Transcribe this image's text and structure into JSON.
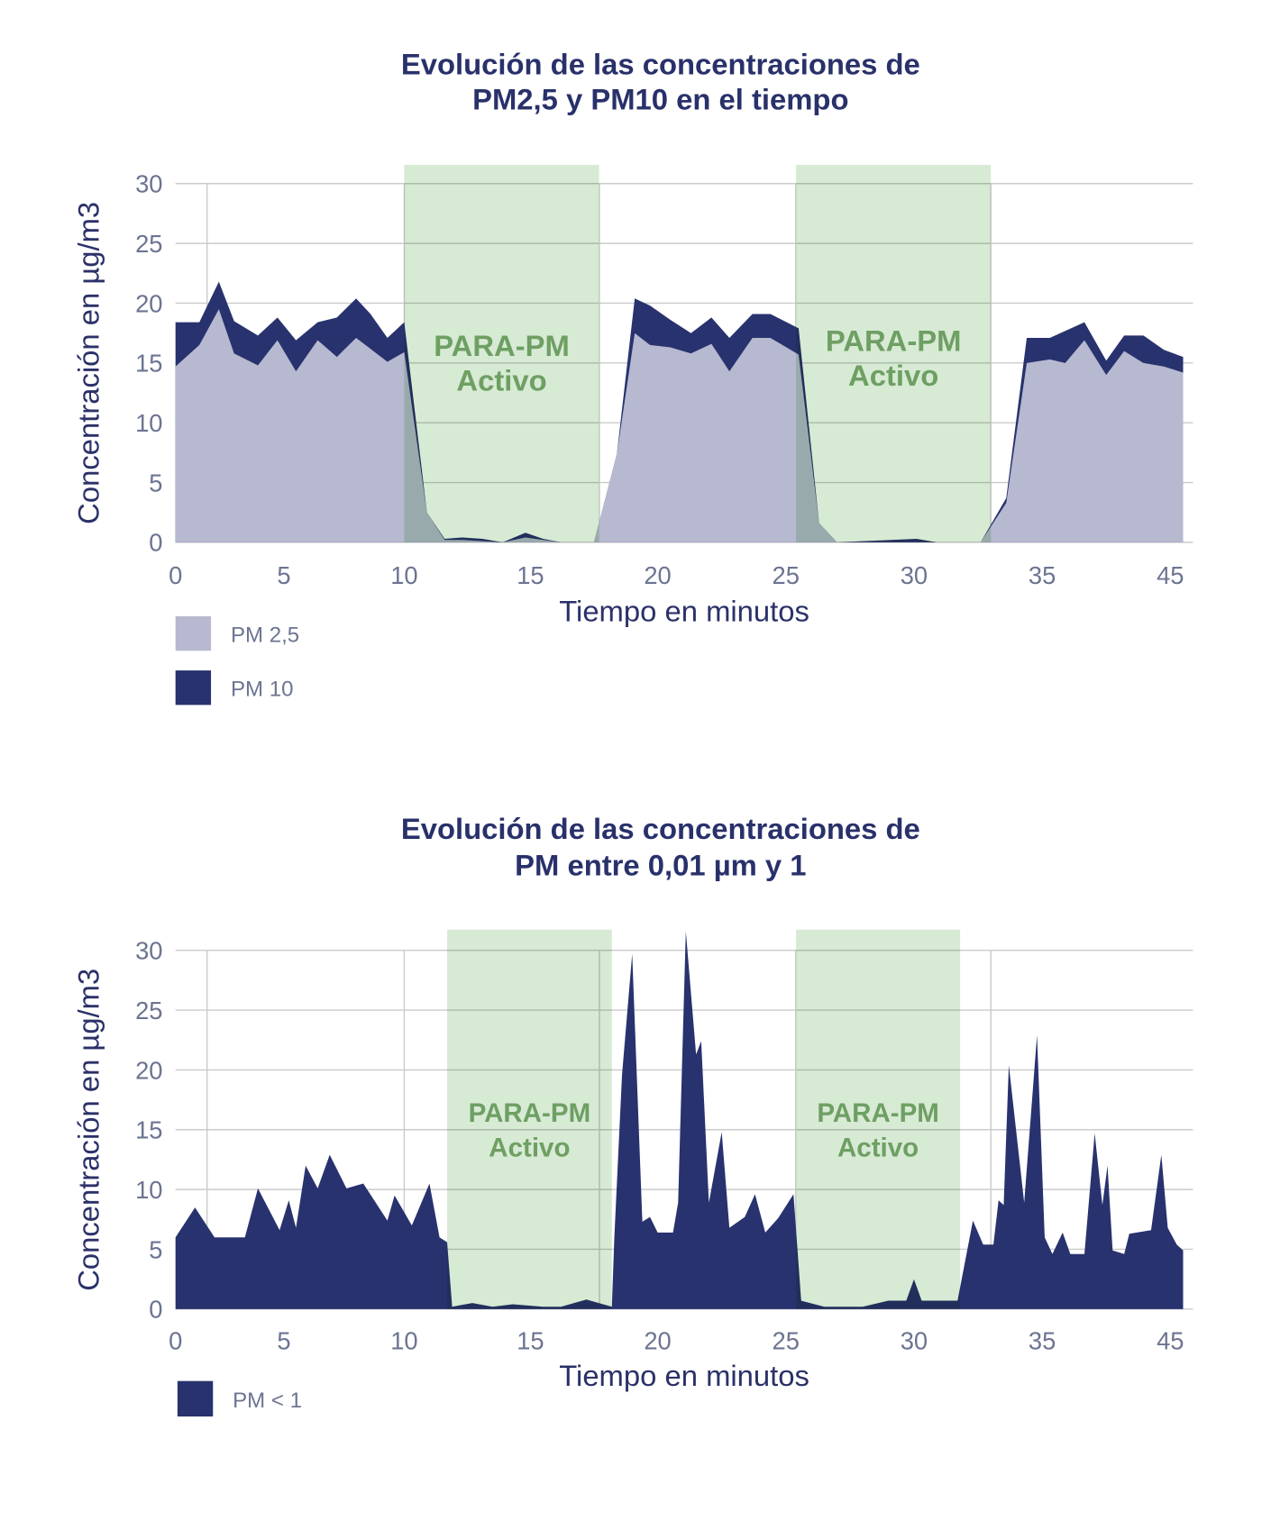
{
  "chart_data": [
    {
      "type": "area",
      "title": [
        "Evolución de las concentraciones de",
        "PM2,5 y PM10 en el tiempo"
      ],
      "xlabel": "Tiempo en minutos",
      "ylabel": "Concentración en µg/m3",
      "x_ticks": [
        0,
        5,
        10,
        15,
        20,
        25,
        30,
        35,
        45
      ],
      "y_ticks": [
        0,
        5,
        10,
        15,
        20,
        25,
        30
      ],
      "ylim": [
        0,
        30
      ],
      "grid": true,
      "legend_position": "bottom-left",
      "band_color": "#d7ead4",
      "annotation_color": "#6e9f63",
      "highlight_bands": [
        {
          "x_start": 10.0,
          "x_end": 17.7,
          "label": [
            "PARA-PM",
            "Activo"
          ]
        },
        {
          "x_start": 25.4,
          "x_end": 33.0,
          "label": [
            "PARA-PM",
            "Activo"
          ]
        }
      ],
      "series": [
        {
          "name": "PM 10",
          "color": "#28326e",
          "x": [
            0,
            1.1,
            2.0,
            2.7,
            3.8,
            4.7,
            5.5,
            6.4,
            7.2,
            8.0,
            8.6,
            9.3,
            10.0,
            10.9,
            11.6,
            12.3,
            13.1,
            13.9,
            14.8,
            15.5,
            16.2,
            17.5,
            18.4,
            19.1,
            19.7,
            20.5,
            21.3,
            22.1,
            22.8,
            23.7,
            24.4,
            25.5,
            26.3,
            27.0,
            30.1,
            30.9,
            32.6,
            33.6,
            34.4,
            35.6,
            38.3,
            40.0,
            41.4,
            42.9,
            44.5,
            46.0
          ],
          "y": [
            18.4,
            18.4,
            21.8,
            18.5,
            17.3,
            18.8,
            16.9,
            18.4,
            18.8,
            20.4,
            19.1,
            17.1,
            18.4,
            2.5,
            0.3,
            0.4,
            0.3,
            0,
            0.8,
            0.3,
            0,
            0,
            7.4,
            20.4,
            19.8,
            18.6,
            17.5,
            18.8,
            17.1,
            19.1,
            19.1,
            17.9,
            1.6,
            0,
            0.3,
            0,
            0,
            3.7,
            17.1,
            17.1,
            18.4,
            15.2,
            17.3,
            17.3,
            16.1,
            15.5
          ]
        },
        {
          "name": "PM 2,5",
          "color": "#b6b9cf",
          "x": [
            0,
            1.1,
            2.0,
            2.7,
            3.8,
            4.7,
            5.5,
            6.4,
            7.2,
            8.0,
            9.3,
            10.0,
            10.9,
            11.6,
            12.3,
            13.9,
            14.8,
            15.5,
            16.2,
            17.5,
            18.4,
            19.1,
            19.7,
            20.5,
            21.3,
            22.1,
            22.8,
            23.7,
            24.4,
            25.5,
            26.3,
            27.0,
            32.6,
            33.6,
            34.4,
            35.6,
            36.8,
            38.3,
            40.0,
            41.4,
            42.9,
            44.5,
            46.0
          ],
          "y": [
            14.7,
            16.5,
            19.5,
            15.8,
            14.8,
            16.9,
            14.3,
            16.9,
            15.5,
            17.1,
            15.1,
            15.9,
            2.5,
            0.2,
            0.2,
            0,
            0.4,
            0.2,
            0,
            0,
            7.4,
            17.5,
            16.5,
            16.3,
            15.8,
            16.6,
            14.3,
            17.1,
            17.1,
            15.7,
            1.6,
            0,
            0,
            3.3,
            15.0,
            15.3,
            15.0,
            16.9,
            14.0,
            16.0,
            15.0,
            14.7,
            14.2
          ]
        }
      ]
    },
    {
      "type": "area",
      "title": [
        "Evolución de las concentraciones de",
        "PM entre 0,01 µm y 1"
      ],
      "xlabel": "Tiempo en minutos",
      "ylabel": "Concentración en µg/m3",
      "x_ticks": [
        0,
        5,
        10,
        15,
        20,
        25,
        30,
        35,
        45
      ],
      "y_ticks": [
        0,
        5,
        10,
        15,
        20,
        25,
        30
      ],
      "ylim": [
        0,
        30
      ],
      "grid": true,
      "legend_position": "bottom-left",
      "band_color": "#d7ead4",
      "annotation_color": "#6e9f63",
      "highlight_bands": [
        {
          "x_start": 11.7,
          "x_end": 18.2,
          "label": [
            "PARA-PM",
            "Activo"
          ]
        },
        {
          "x_start": 25.4,
          "x_end": 31.8,
          "label": [
            "PARA-PM",
            "Activo"
          ]
        }
      ],
      "series": [
        {
          "name": "PM < 1",
          "color": "#28326e",
          "x": [
            0,
            0.9,
            1.8,
            3.2,
            3.8,
            4.8,
            5.2,
            5.5,
            5.9,
            6.4,
            6.9,
            7.6,
            8.3,
            9.3,
            9.6,
            10.3,
            11.0,
            11.4,
            11.7,
            11.9,
            12.7,
            13.5,
            14.3,
            15.5,
            16.2,
            17.2,
            18.2,
            18.3,
            18.6,
            19.0,
            19.4,
            19.7,
            20.0,
            20.6,
            20.8,
            21.1,
            21.5,
            21.7,
            22.0,
            22.5,
            22.8,
            23.4,
            23.8,
            24.2,
            24.7,
            25.3,
            25.6,
            26.5,
            28.0,
            29.0,
            29.7,
            30.0,
            30.3,
            31.7,
            32.3,
            32.7,
            33.1,
            33.3,
            33.5,
            33.7,
            34.3,
            34.8,
            35.2,
            35.8,
            36.6,
            37.2,
            38.3,
            39.1,
            39.7,
            40.1,
            40.5,
            41.4,
            41.8,
            43.5,
            44.3,
            44.8,
            45.5,
            46.0
          ],
          "y": [
            6.0,
            8.5,
            6.0,
            6.0,
            10.1,
            6.6,
            9.1,
            6.8,
            12.0,
            10.1,
            12.9,
            10.1,
            10.5,
            7.4,
            9.5,
            7.0,
            10.5,
            6.0,
            5.6,
            0.2,
            0.5,
            0.2,
            0.4,
            0.2,
            0.2,
            0.8,
            0.2,
            6.0,
            19.6,
            29.7,
            7.3,
            7.7,
            6.4,
            6.4,
            8.9,
            31.6,
            21.3,
            22.4,
            8.9,
            14.8,
            6.8,
            7.7,
            9.6,
            6.4,
            7.6,
            9.6,
            0.7,
            0.2,
            0.2,
            0.7,
            0.7,
            2.5,
            0.7,
            0.7,
            7.4,
            5.4,
            5.4,
            9.1,
            8.7,
            20.4,
            8.9,
            22.9,
            6.0,
            4.6,
            6.4,
            4.6,
            4.6,
            14.7,
            8.7,
            12.0,
            4.9,
            4.6,
            6.3,
            6.6,
            12.9,
            6.8,
            5.4,
            4.9
          ]
        }
      ]
    }
  ]
}
